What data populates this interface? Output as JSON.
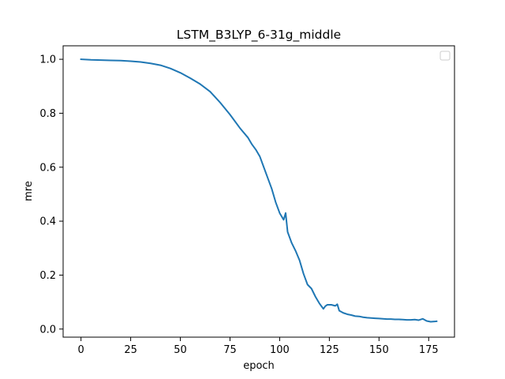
{
  "chart_data": {
    "type": "line",
    "title": "LSTM_B3LYP_6-31g_middle",
    "xlabel": "epoch",
    "ylabel": "mre",
    "xlim": [
      -9,
      188
    ],
    "ylim": [
      -0.03,
      1.05
    ],
    "xticks": [
      0,
      25,
      50,
      75,
      100,
      125,
      150,
      175
    ],
    "yticks": [
      0.0,
      0.2,
      0.4,
      0.6,
      0.8,
      1.0
    ],
    "xtick_labels": [
      "0",
      "25",
      "50",
      "75",
      "100",
      "125",
      "150",
      "175"
    ],
    "ytick_labels": [
      "0.0",
      "0.2",
      "0.4",
      "0.6",
      "0.8",
      "1.0"
    ],
    "grid": false,
    "legend": {
      "placement": "upper-right",
      "entries": []
    },
    "series": [
      {
        "color": "#1f77b4",
        "x": [
          0,
          5,
          10,
          15,
          20,
          25,
          30,
          35,
          40,
          45,
          50,
          55,
          60,
          65,
          70,
          75,
          80,
          84,
          86,
          88,
          90,
          92,
          94,
          96,
          98,
          100,
          102,
          103,
          104,
          106,
          108,
          110,
          112,
          114,
          116,
          118,
          120,
          122,
          123,
          124,
          126,
          128,
          129,
          130,
          132,
          134,
          136,
          138,
          140,
          142,
          144,
          146,
          148,
          150,
          152,
          154,
          156,
          158,
          160,
          162,
          164,
          166,
          168,
          170,
          172,
          174,
          176,
          178,
          179
        ],
        "y": [
          1.0,
          0.998,
          0.997,
          0.996,
          0.995,
          0.993,
          0.99,
          0.985,
          0.978,
          0.966,
          0.95,
          0.93,
          0.908,
          0.88,
          0.84,
          0.795,
          0.745,
          0.71,
          0.685,
          0.665,
          0.64,
          0.6,
          0.56,
          0.52,
          0.47,
          0.43,
          0.405,
          0.43,
          0.36,
          0.32,
          0.29,
          0.255,
          0.205,
          0.165,
          0.15,
          0.12,
          0.095,
          0.075,
          0.085,
          0.09,
          0.09,
          0.086,
          0.092,
          0.068,
          0.06,
          0.055,
          0.052,
          0.048,
          0.047,
          0.044,
          0.042,
          0.041,
          0.04,
          0.039,
          0.038,
          0.037,
          0.037,
          0.036,
          0.036,
          0.035,
          0.034,
          0.034,
          0.035,
          0.033,
          0.038,
          0.03,
          0.027,
          0.028,
          0.029
        ]
      }
    ]
  }
}
